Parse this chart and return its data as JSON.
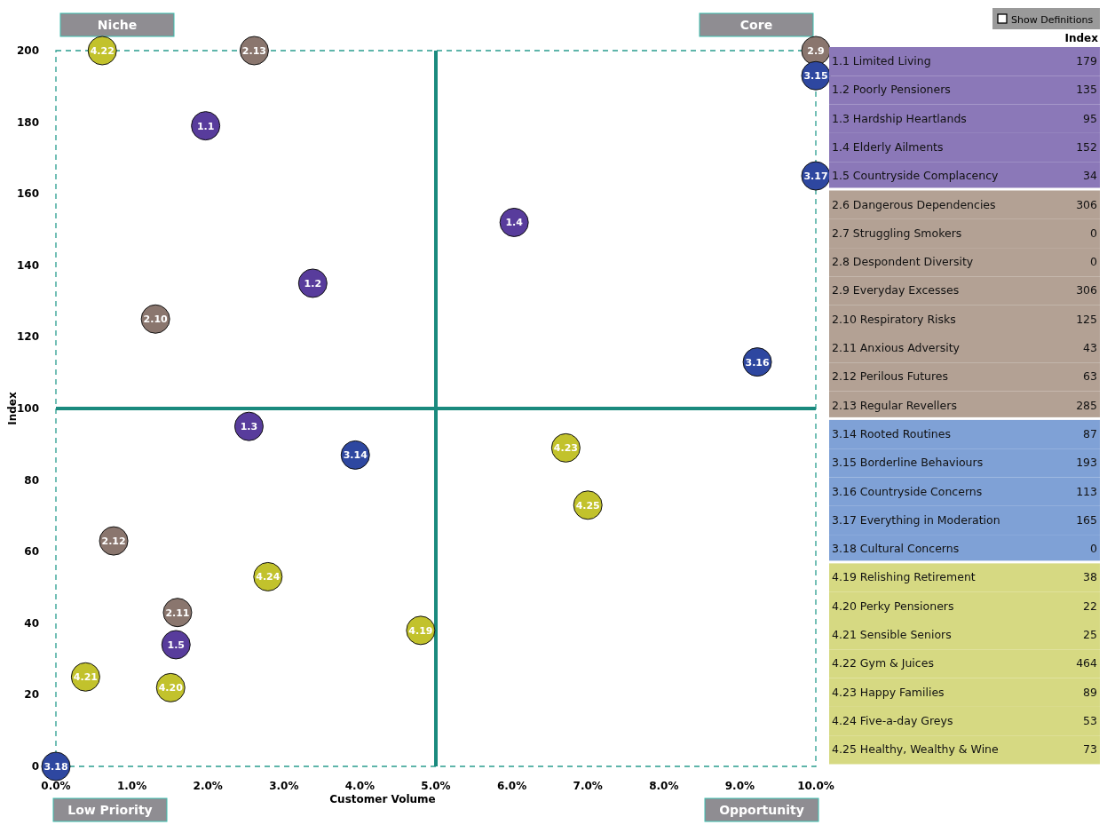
{
  "chart_data": [
    {
      "type": "scatter",
      "xlabel": "Customer Volume",
      "ylabel": "Index",
      "xlim": [
        0,
        10
      ],
      "ylim": [
        0,
        200
      ],
      "xticks": [
        {
          "value": 0,
          "label": "0.0%"
        },
        {
          "value": 1,
          "label": "1.0%"
        },
        {
          "value": 2,
          "label": "2.0%"
        },
        {
          "value": 3,
          "label": "3.0%"
        },
        {
          "value": 4,
          "label": "4.0%"
        },
        {
          "value": 5,
          "label": "5.0%"
        },
        {
          "value": 6,
          "label": "6.0%"
        },
        {
          "value": 7,
          "label": "7.0%"
        },
        {
          "value": 8,
          "label": "8.0%"
        },
        {
          "value": 9,
          "label": "9.0%"
        },
        {
          "value": 10,
          "label": "10.0%"
        }
      ],
      "yticks": [
        0,
        20,
        40,
        60,
        80,
        100,
        120,
        140,
        160,
        180,
        200
      ],
      "grid": false,
      "legend": false,
      "marker": "circle",
      "ref_lines": [
        {
          "axis": "x",
          "value": 5,
          "color": "#1a8a7e"
        },
        {
          "axis": "y",
          "value": 100,
          "color": "#1a8a7e"
        }
      ],
      "annotations": [
        "Niche",
        "Core",
        "Low Priority",
        "Opportunity",
        {
          "text": "1.1",
          "x": 1.97,
          "y": 179
        },
        {
          "text": "1.2",
          "x": 3.38,
          "y": 135
        },
        {
          "text": "1.3",
          "x": 2.54,
          "y": 95
        },
        {
          "text": "1.4",
          "x": 6.03,
          "y": 152
        },
        {
          "text": "1.5",
          "x": 1.58,
          "y": 34
        },
        {
          "text": "2.9",
          "x": 10,
          "y": 200
        },
        {
          "text": "2.10",
          "x": 1.31,
          "y": 125
        },
        {
          "text": "2.11",
          "x": 1.6,
          "y": 43
        },
        {
          "text": "2.12",
          "x": 0.76,
          "y": 63
        },
        {
          "text": "2.13",
          "x": 2.61,
          "y": 200
        },
        {
          "text": "3.14",
          "x": 3.94,
          "y": 87
        },
        {
          "text": "3.15",
          "x": 10,
          "y": 193
        },
        {
          "text": "3.16",
          "x": 9.23,
          "y": 113
        },
        {
          "text": "3.17",
          "x": 10,
          "y": 165
        },
        {
          "text": "3.18",
          "x": 0,
          "y": 0
        },
        {
          "text": "4.19",
          "x": 4.8,
          "y": 38
        },
        {
          "text": "4.20",
          "x": 1.51,
          "y": 22
        },
        {
          "text": "4.21",
          "x": 0.39,
          "y": 25
        },
        {
          "text": "4.22",
          "x": 0.61,
          "y": 200
        },
        {
          "text": "4.23",
          "x": 6.71,
          "y": 89
        },
        {
          "text": "4.24",
          "x": 2.79,
          "y": 53
        },
        {
          "text": "4.25",
          "x": 7.0,
          "y": 73
        }
      ],
      "series": [
        {
          "color": "#583c9c",
          "x": [
            1.97,
            3.38,
            2.54,
            6.03,
            1.58
          ],
          "values": [
            179,
            135,
            95,
            152,
            34
          ]
        },
        {
          "color": "#8a766e",
          "x": [
            10,
            1.31,
            1.6,
            0.76,
            2.61
          ],
          "values": [
            200,
            125,
            43,
            63,
            200
          ]
        },
        {
          "color": "#2e47a0",
          "x": [
            3.94,
            10,
            9.23,
            10,
            0
          ],
          "values": [
            87,
            193,
            113,
            165,
            0
          ]
        },
        {
          "color": "#c2c22c",
          "x": [
            4.8,
            1.51,
            0.39,
            0.61,
            6.71,
            2.79,
            7.0
          ],
          "values": [
            38,
            22,
            25,
            200,
            89,
            53,
            73
          ]
        }
      ]
    },
    {
      "type": "other",
      "title": "Index",
      "annotations": [
        "Show Definitions"
      ],
      "data_labels": true,
      "categories": [
        "1.1 Limited Living",
        "1.2 Poorly Pensioners",
        "1.3 Hardship Heartlands",
        "1.4 Elderly Ailments",
        "1.5 Countryside Complacency",
        "2.6 Dangerous Dependencies",
        "2.7 Struggling Smokers",
        "2.8 Despondent Diversity",
        "2.9 Everyday Excesses",
        "2.10 Respiratory Risks",
        "2.11 Anxious Adversity",
        "2.12 Perilous Futures",
        "2.13 Regular Revellers",
        "3.14 Rooted Routines",
        "3.15 Borderline Behaviours",
        "3.16 Countryside Concerns",
        "3.17 Everything in Moderation",
        "3.18 Cultural Concerns",
        "4.19 Relishing Retirement",
        "4.20 Perky Pensioners",
        "4.21 Sensible Seniors",
        "4.22 Gym & Juices",
        "4.23 Happy Families",
        "4.24 Five-a-day Greys",
        "4.25 Healthy, Wealthy & Wine"
      ],
      "values": [
        179,
        135,
        95,
        152,
        34,
        306,
        0,
        0,
        306,
        125,
        43,
        63,
        285,
        87,
        193,
        113,
        165,
        0,
        38,
        22,
        25,
        464,
        89,
        53,
        73
      ],
      "colors": [
        "#8b78b8",
        "#8b78b8",
        "#8b78b8",
        "#8b78b8",
        "#8b78b8",
        "#b3a194",
        "#b3a194",
        "#b3a194",
        "#b3a194",
        "#b3a194",
        "#b3a194",
        "#b3a194",
        "#b3a194",
        "#7fa1d6",
        "#7fa1d6",
        "#7fa1d6",
        "#7fa1d6",
        "#7fa1d6",
        "#d6d982",
        "#d6d982",
        "#d6d982",
        "#d6d982",
        "#d6d982",
        "#d6d982",
        "#d6d982"
      ]
    }
  ]
}
